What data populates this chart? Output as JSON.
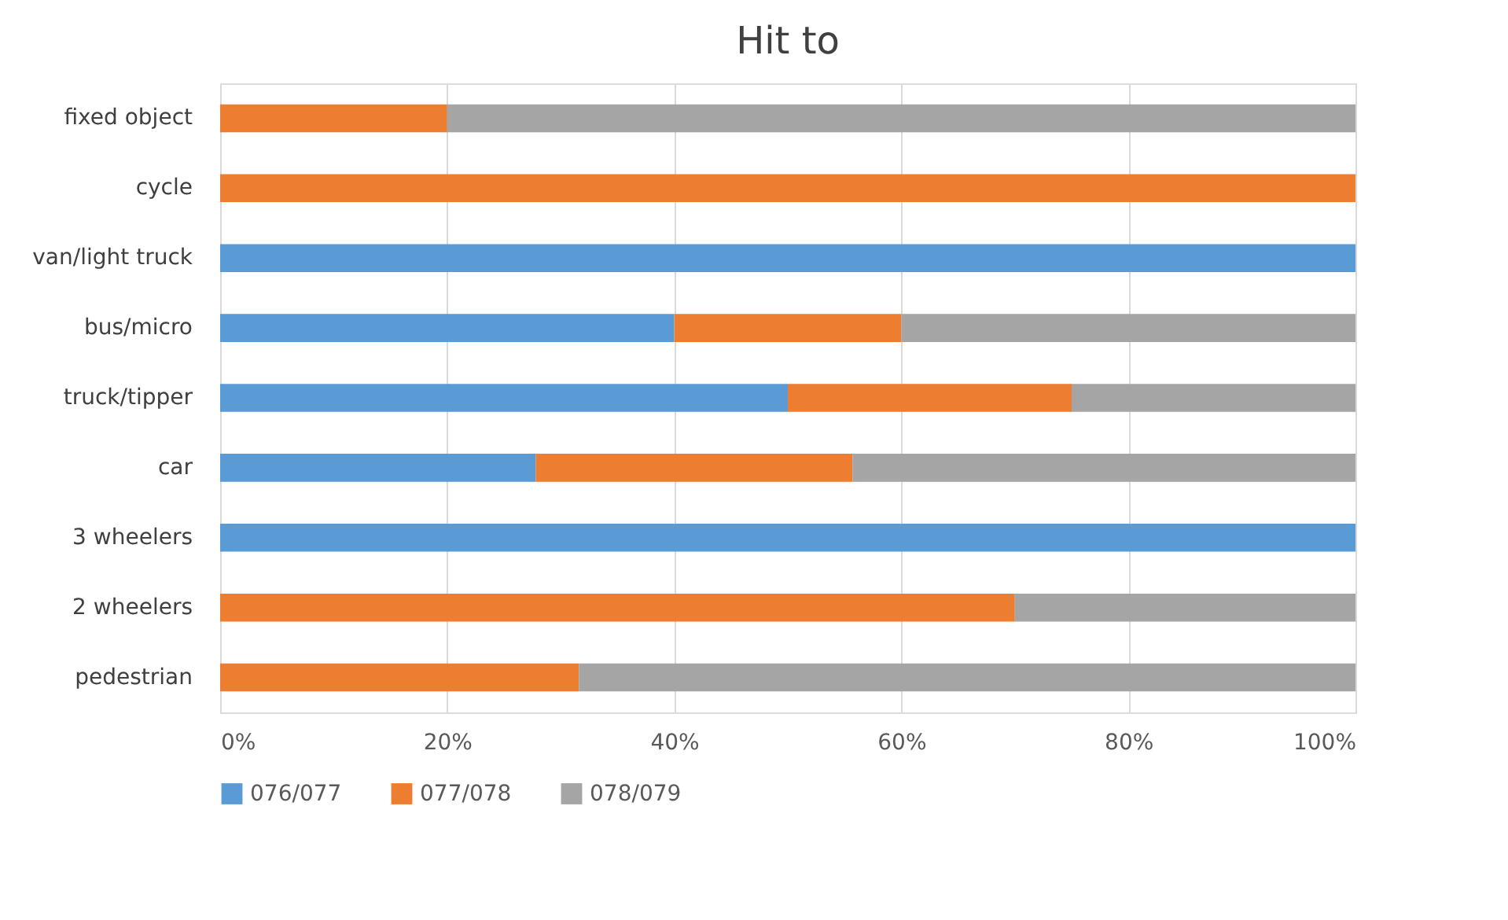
{
  "chart_data": {
    "type": "bar",
    "orientation": "horizontal",
    "stacked": true,
    "title": "Hit to",
    "categories": [
      "fixed object",
      "cycle",
      "van/light truck",
      "bus/micro",
      "truck/tipper",
      "car",
      "3 wheelers",
      "2 wheelers",
      "pedestrian"
    ],
    "series": [
      {
        "name": "076/077",
        "color": "#5b9bd5",
        "values": [
          0,
          0,
          100,
          40,
          50,
          27.8,
          100,
          0,
          0
        ]
      },
      {
        "name": "077/078",
        "color": "#ed7d31",
        "values": [
          20,
          100,
          0,
          20,
          25,
          27.9,
          0,
          70,
          31.6
        ]
      },
      {
        "name": "078/079",
        "color": "#a5a5a5",
        "values": [
          80,
          0,
          0,
          40,
          25,
          44.3,
          0,
          30,
          68.4
        ]
      }
    ],
    "xlim": [
      0,
      100
    ],
    "xticks": [
      {
        "value": 0,
        "label": "0%"
      },
      {
        "value": 20,
        "label": "20%"
      },
      {
        "value": 40,
        "label": "40%"
      },
      {
        "value": 60,
        "label": "60%"
      },
      {
        "value": 80,
        "label": "80%"
      },
      {
        "value": 100,
        "label": "100%"
      }
    ],
    "grid": "x",
    "legend": "bottom"
  }
}
